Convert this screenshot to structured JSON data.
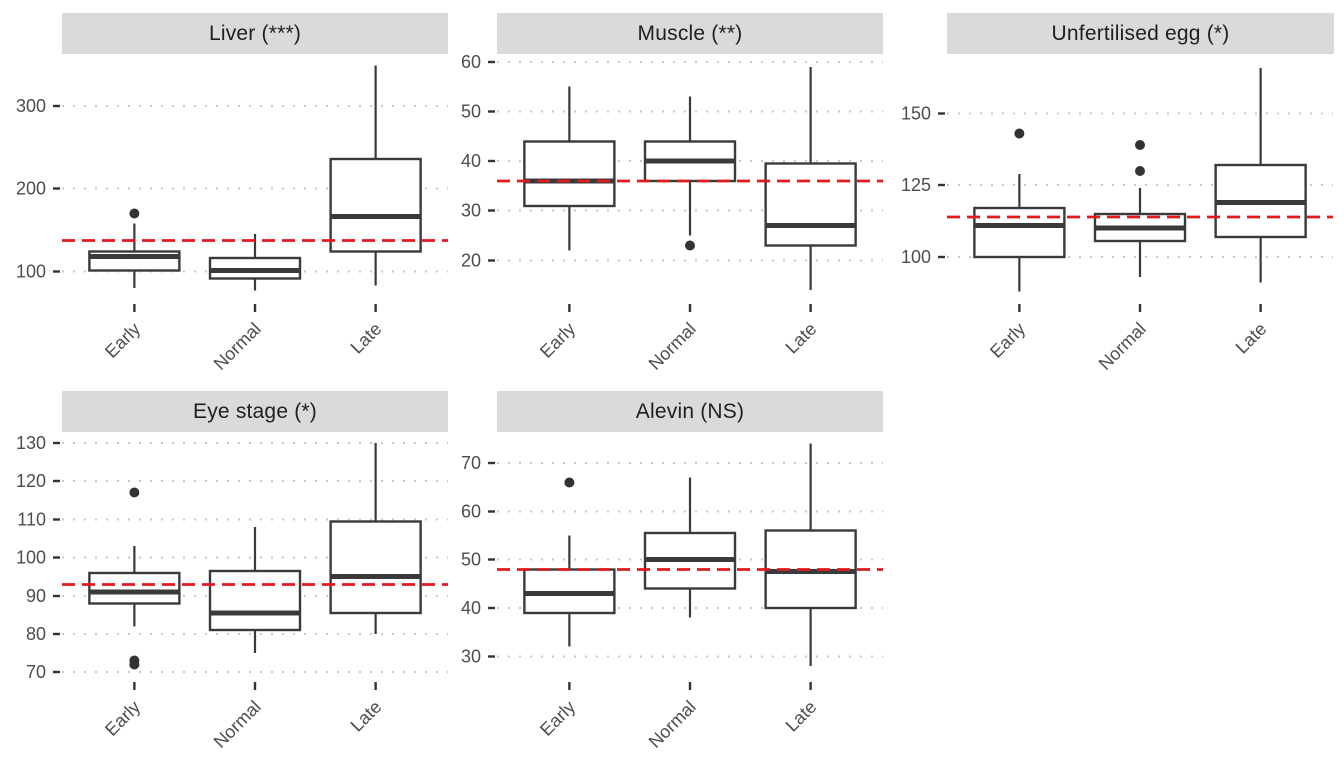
{
  "figure": {
    "background": "#ffffff",
    "facet_rows": 2,
    "facet_cols": 3
  },
  "colors": {
    "refline": "#e31a1c",
    "box_border": "#3a3a3a",
    "box_fill": "#ffffff",
    "outlier": "#333333",
    "grid": "#c8c8c8",
    "axis_text": "#4d4d4d",
    "tick_mark": "#333333",
    "strip_bg": "#dadada",
    "strip_text": "#1f1f1f"
  },
  "chart_data": [
    {
      "type": "boxplot",
      "title": "Liver (***)",
      "categories": [
        "Early",
        "Normal",
        "Late"
      ],
      "xlabel": "",
      "ylabel": "",
      "ylim": [
        64,
        363
      ],
      "yticks": [
        100,
        200,
        300
      ],
      "grid": "dotted-major-y",
      "refline": 137,
      "boxes": [
        {
          "category": "Early",
          "whisker_low": 80,
          "q1": 101,
          "median": 118,
          "q3": 124,
          "whisker_high": 158,
          "outliers": [
            170
          ]
        },
        {
          "category": "Normal",
          "whisker_low": 77,
          "q1": 91,
          "median": 101,
          "q3": 116,
          "whisker_high": 145,
          "outliers": []
        },
        {
          "category": "Late",
          "whisker_low": 83,
          "q1": 124,
          "median": 166,
          "q3": 236,
          "whisker_high": 349,
          "outliers": []
        }
      ]
    },
    {
      "type": "boxplot",
      "title": "Muscle (**)",
      "categories": [
        "Early",
        "Normal",
        "Late"
      ],
      "xlabel": "",
      "ylabel": "",
      "ylim": [
        11.8,
        61.6
      ],
      "yticks": [
        20,
        30,
        40,
        50,
        60
      ],
      "grid": "dotted-major-y",
      "refline": 36,
      "boxes": [
        {
          "category": "Early",
          "whisker_low": 22,
          "q1": 31,
          "median": 36,
          "q3": 44,
          "whisker_high": 55,
          "outliers": []
        },
        {
          "category": "Normal",
          "whisker_low": 25,
          "q1": 36,
          "median": 40,
          "q3": 44,
          "whisker_high": 53,
          "outliers": [
            23
          ]
        },
        {
          "category": "Late",
          "whisker_low": 14,
          "q1": 23,
          "median": 27,
          "q3": 39.5,
          "whisker_high": 59,
          "outliers": []
        }
      ]
    },
    {
      "type": "boxplot",
      "title": "Unfertilised egg (*)",
      "categories": [
        "Early",
        "Normal",
        "Late"
      ],
      "xlabel": "",
      "ylabel": "",
      "ylim": [
        84.6,
        170.8
      ],
      "yticks": [
        100,
        125,
        150
      ],
      "grid": "dotted-major-y",
      "refline": 114,
      "boxes": [
        {
          "category": "Early",
          "whisker_low": 88,
          "q1": 100,
          "median": 111,
          "q3": 117,
          "whisker_high": 129,
          "outliers": [
            143
          ]
        },
        {
          "category": "Normal",
          "whisker_low": 93,
          "q1": 105.5,
          "median": 110,
          "q3": 115,
          "whisker_high": 124,
          "outliers": [
            139,
            130
          ]
        },
        {
          "category": "Late",
          "whisker_low": 91,
          "q1": 107,
          "median": 119,
          "q3": 132,
          "whisker_high": 166,
          "outliers": []
        }
      ]
    },
    {
      "type": "boxplot",
      "title": "Eye stage (*)",
      "categories": [
        "Early",
        "Normal",
        "Late"
      ],
      "xlabel": "",
      "ylabel": "",
      "ylim": [
        68.2,
        132.9
      ],
      "yticks": [
        70,
        80,
        90,
        100,
        110,
        120,
        130
      ],
      "grid": "dotted-major-y",
      "refline": 93,
      "boxes": [
        {
          "category": "Early",
          "whisker_low": 82,
          "q1": 88,
          "median": 91,
          "q3": 96,
          "whisker_high": 103,
          "outliers": [
            117,
            73,
            72
          ]
        },
        {
          "category": "Normal",
          "whisker_low": 75,
          "q1": 81,
          "median": 85.5,
          "q3": 96.5,
          "whisker_high": 108,
          "outliers": []
        },
        {
          "category": "Late",
          "whisker_low": 80,
          "q1": 85.5,
          "median": 95,
          "q3": 109.5,
          "whisker_high": 130,
          "outliers": []
        }
      ]
    },
    {
      "type": "boxplot",
      "title": "Alevin (NS)",
      "categories": [
        "Early",
        "Normal",
        "Late"
      ],
      "xlabel": "",
      "ylabel": "",
      "ylim": [
        25.3,
        76.4
      ],
      "yticks": [
        30,
        40,
        50,
        60,
        70
      ],
      "grid": "dotted-major-y",
      "refline": 48,
      "boxes": [
        {
          "category": "Early",
          "whisker_low": 32,
          "q1": 39,
          "median": 43,
          "q3": 48,
          "whisker_high": 55,
          "outliers": [
            66
          ]
        },
        {
          "category": "Normal",
          "whisker_low": 38,
          "q1": 44,
          "median": 50,
          "q3": 55.5,
          "whisker_high": 67,
          "outliers": []
        },
        {
          "category": "Late",
          "whisker_low": 28,
          "q1": 40,
          "median": 47.5,
          "q3": 56,
          "whisker_high": 74,
          "outliers": []
        }
      ]
    }
  ]
}
